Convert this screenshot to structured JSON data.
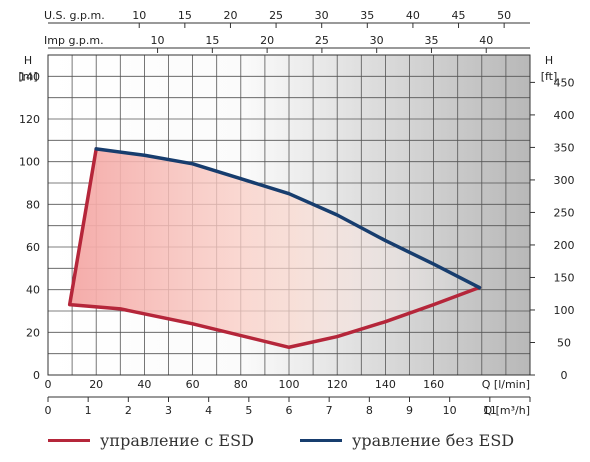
{
  "chart_data": {
    "type": "line",
    "top_axes": [
      {
        "label": "U.S. g.p.m.",
        "ticks": [
          10,
          15,
          20,
          25,
          30,
          35,
          40,
          45,
          50
        ],
        "per_l_min": 0.264172
      },
      {
        "label": "Imp g.p.m.",
        "ticks": [
          10,
          15,
          20,
          25,
          30,
          35,
          40
        ],
        "per_l_min": 0.219969
      }
    ],
    "x_axis": {
      "label": "Q [l/min]",
      "min": 0,
      "max": 200,
      "ticks": [
        0,
        20,
        40,
        60,
        80,
        100,
        120,
        140,
        160
      ]
    },
    "x2_axis": {
      "label": "Q [m³/h]",
      "ticks": [
        0,
        1,
        2,
        3,
        4,
        5,
        6,
        7,
        8,
        9,
        10,
        11,
        12
      ]
    },
    "y_axis": {
      "title": "H",
      "unit": "[m]",
      "min": 0,
      "max": 150,
      "ticks": [
        0,
        20,
        40,
        60,
        80,
        100,
        120,
        140
      ]
    },
    "y2_axis": {
      "title": "H",
      "unit": "[ft]",
      "ticks": [
        0,
        50,
        100,
        150,
        200,
        250,
        300,
        350,
        400,
        450
      ]
    },
    "grid": true,
    "series": [
      {
        "name": "управление с  ESD",
        "color": "#b5263a",
        "points": [
          [
            20,
            106
          ],
          [
            9,
            33
          ],
          [
            30,
            31
          ],
          [
            60,
            24
          ],
          [
            100,
            13
          ],
          [
            120,
            18
          ],
          [
            140,
            25
          ],
          [
            160,
            33
          ],
          [
            179,
            41
          ]
        ]
      },
      {
        "name": "уравление без ESD",
        "color": "#173d6e",
        "points": [
          [
            20,
            106
          ],
          [
            40,
            103
          ],
          [
            60,
            99
          ],
          [
            80,
            92
          ],
          [
            100,
            85
          ],
          [
            120,
            75
          ],
          [
            140,
            63
          ],
          [
            160,
            52
          ],
          [
            179,
            41
          ]
        ]
      }
    ]
  }
}
